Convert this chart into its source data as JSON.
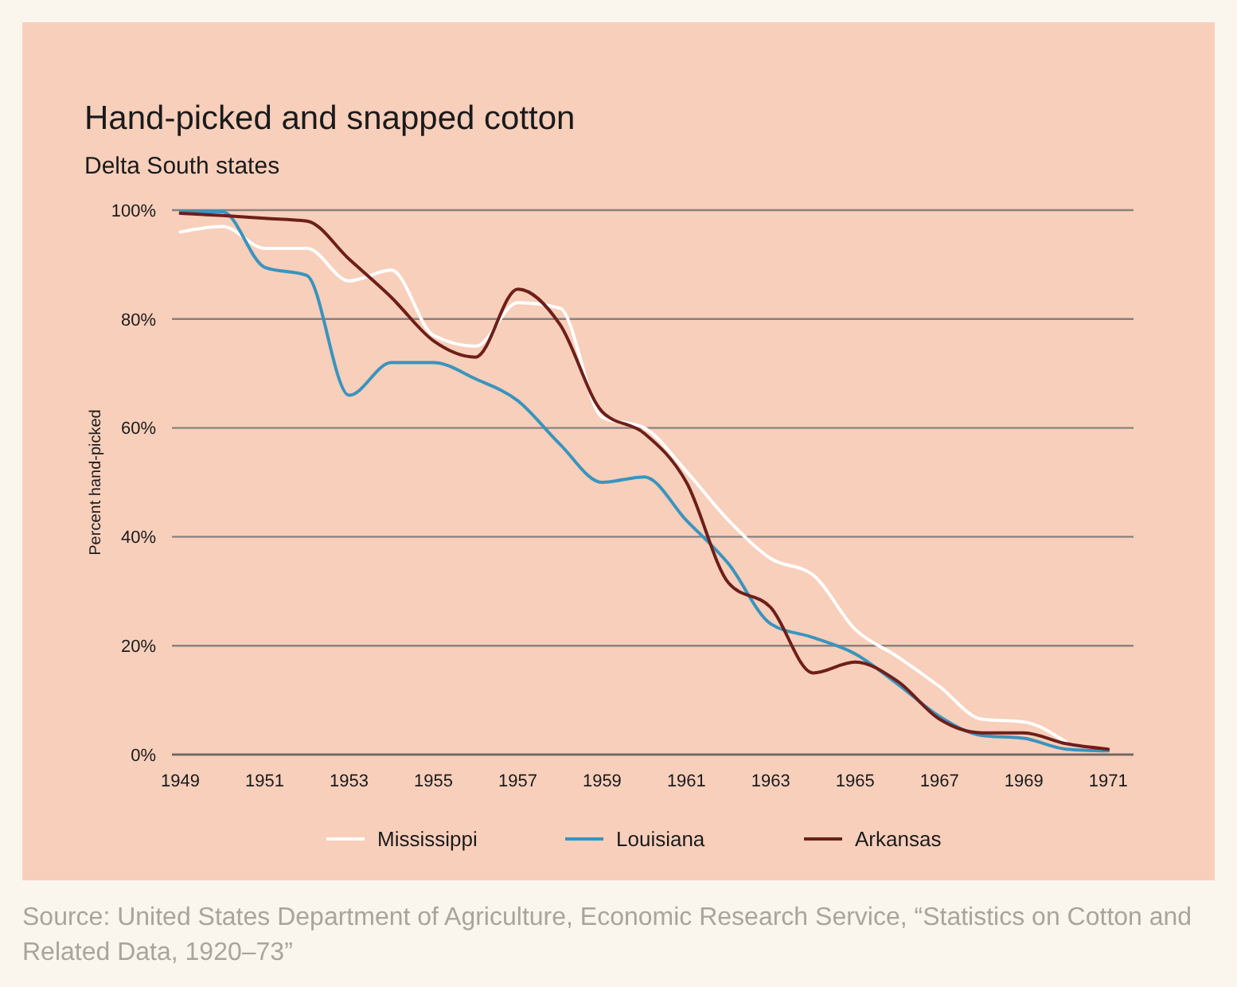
{
  "chart_data": {
    "type": "line",
    "title": "Hand-picked and snapped cotton",
    "subtitle": "Delta South states",
    "ylabel": "Percent hand-picked",
    "x": [
      1949,
      1950,
      1951,
      1952,
      1953,
      1954,
      1955,
      1956,
      1957,
      1958,
      1959,
      1960,
      1961,
      1962,
      1963,
      1964,
      1965,
      1966,
      1967,
      1968,
      1969,
      1970,
      1971
    ],
    "series": [
      {
        "name": "Mississippi",
        "color": "#ffffff",
        "values": [
          96,
          97,
          93,
          93,
          87,
          89,
          77,
          75,
          83,
          82,
          62,
          60,
          52,
          43,
          36,
          33,
          23,
          18,
          12.5,
          6.5,
          6,
          2.3,
          null
        ]
      },
      {
        "name": "Louisiana",
        "color": "#3a94bd",
        "values": [
          99.7,
          99.7,
          89.5,
          88,
          66,
          72,
          72,
          69,
          65,
          57,
          50,
          51,
          43,
          35,
          24,
          21.5,
          18.5,
          13,
          7,
          3.5,
          3,
          1,
          0.7
        ]
      },
      {
        "name": "Arkansas",
        "color": "#6e1f1a",
        "values": [
          99.4,
          99,
          98.5,
          98,
          91,
          84,
          76,
          73,
          85.5,
          79,
          63,
          59,
          50,
          31.5,
          27,
          15,
          17,
          13.5,
          6.5,
          4,
          4,
          2,
          1
        ]
      }
    ],
    "xlim": [
      1948.8,
      1971.6
    ],
    "xticks": [
      1949,
      1951,
      1953,
      1955,
      1957,
      1959,
      1961,
      1963,
      1965,
      1967,
      1969,
      1971
    ],
    "ylim": [
      0,
      100
    ],
    "yticks": [
      {
        "value": 0,
        "label": "0%"
      },
      {
        "value": 20,
        "label": "20%"
      },
      {
        "value": 40,
        "label": "40%"
      },
      {
        "value": 60,
        "label": "60%"
      },
      {
        "value": 80,
        "label": "80%"
      },
      {
        "value": 100,
        "label": "100%"
      }
    ],
    "grid": "y",
    "legend": "bottom",
    "line_style": "solid",
    "marker": "none",
    "annotations": [
      "Source: United States Department of Agriculture, Economic Research Service, “Statistics on Cotton and Related Data, 1920–73”"
    ]
  }
}
